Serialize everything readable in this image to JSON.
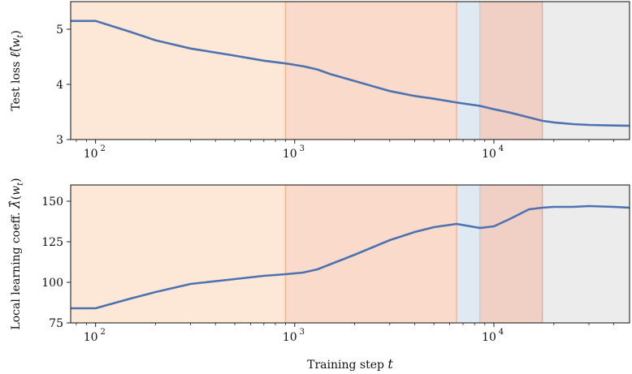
{
  "chart_data": {
    "type": "line",
    "xscale": "log",
    "xlim": [
      75,
      48000
    ],
    "xticks": [
      {
        "value": 100,
        "base": "10",
        "exp": "2"
      },
      {
        "value": 1000,
        "base": "10",
        "exp": "3"
      },
      {
        "value": 10000,
        "base": "10",
        "exp": "4"
      }
    ],
    "xlabel": "Training step",
    "xlabel_symbol": "t",
    "line_color": "#4c72b0",
    "stages": [
      {
        "start": 75,
        "end": 900,
        "color": "#fde8d7"
      },
      {
        "start": 900,
        "end": 6500,
        "color": "#fadbcb"
      },
      {
        "start": 6500,
        "end": 8500,
        "color": "#dfe9f2"
      },
      {
        "start": 8500,
        "end": 17500,
        "color": "#f0d0c4"
      },
      {
        "start": 17500,
        "end": 48000,
        "color": "#ececec"
      }
    ],
    "boundary_colors": [
      "#f5b98c",
      "#f4b89a",
      "#c9cdd6",
      "#d5b3a9"
    ],
    "panels": [
      {
        "ylabel_prefix": "Test loss",
        "ylabel_symbol": "ℓ̂",
        "ylabel_arg": "w",
        "ylabel_sub": "t",
        "ylim": [
          3,
          5.5
        ],
        "yticks": [
          "3",
          "4",
          "5"
        ],
        "ytick_values": [
          3,
          4,
          5
        ],
        "x": [
          75,
          100,
          150,
          200,
          300,
          500,
          700,
          900,
          1100,
          1300,
          1500,
          2000,
          3000,
          4000,
          5000,
          6500,
          8500,
          10000,
          12000,
          15000,
          17500,
          20000,
          25000,
          30000,
          40000,
          48000
        ],
        "y": [
          5.15,
          5.15,
          4.95,
          4.8,
          4.65,
          4.52,
          4.43,
          4.38,
          4.33,
          4.27,
          4.19,
          4.06,
          3.88,
          3.79,
          3.74,
          3.67,
          3.61,
          3.55,
          3.49,
          3.4,
          3.34,
          3.31,
          3.28,
          3.265,
          3.255,
          3.25
        ]
      },
      {
        "ylabel_prefix": "Local learning coeff.",
        "ylabel_symbol": "λ̂",
        "ylabel_arg": "w",
        "ylabel_sub": "t",
        "ylim": [
          75,
          160
        ],
        "yticks": [
          "75",
          "100",
          "125",
          "150"
        ],
        "ytick_values": [
          75,
          100,
          125,
          150
        ],
        "x": [
          75,
          100,
          150,
          200,
          300,
          500,
          700,
          900,
          1100,
          1300,
          1500,
          2000,
          3000,
          4000,
          5000,
          6500,
          8500,
          10000,
          12000,
          15000,
          17500,
          20000,
          25000,
          30000,
          40000,
          48000
        ],
        "y": [
          84,
          84,
          90,
          94,
          99,
          102,
          104,
          105,
          106,
          108,
          111,
          117,
          126,
          131,
          134,
          136,
          133.5,
          134.5,
          139,
          145,
          146,
          146.5,
          146.5,
          147,
          146.5,
          146
        ]
      }
    ]
  }
}
